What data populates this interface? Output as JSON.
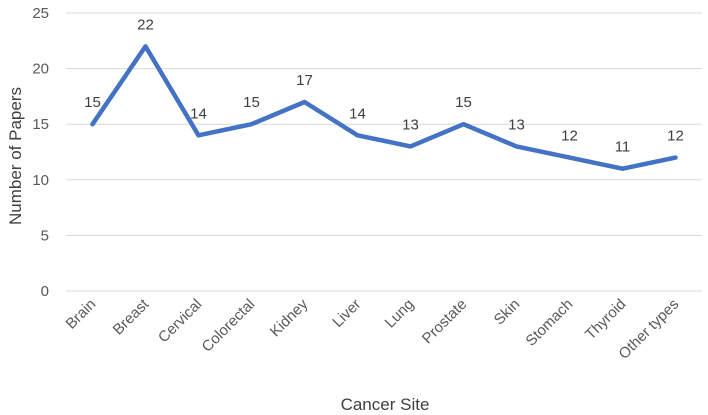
{
  "chart_data": {
    "type": "line",
    "categories": [
      "Brain",
      "Breast",
      "Cervical",
      "Colorectal",
      "Kidney",
      "Liver",
      "Lung",
      "Prostate",
      "Skin",
      "Stomach",
      "Thyroid",
      "Other types"
    ],
    "series": [
      {
        "values": [
          15,
          22,
          14,
          15,
          17,
          14,
          13,
          15,
          13,
          12,
          11,
          12
        ]
      }
    ],
    "xlabel": "Cancer Site",
    "ylabel": "Number of Papers",
    "ylim": [
      0,
      25
    ],
    "yticks": [
      0,
      5,
      10,
      15,
      20,
      25
    ],
    "grid": true,
    "data_labels": true,
    "colors": {
      "line": "#4472c4",
      "grid": "#d9d9d9",
      "text": "#595959"
    }
  }
}
